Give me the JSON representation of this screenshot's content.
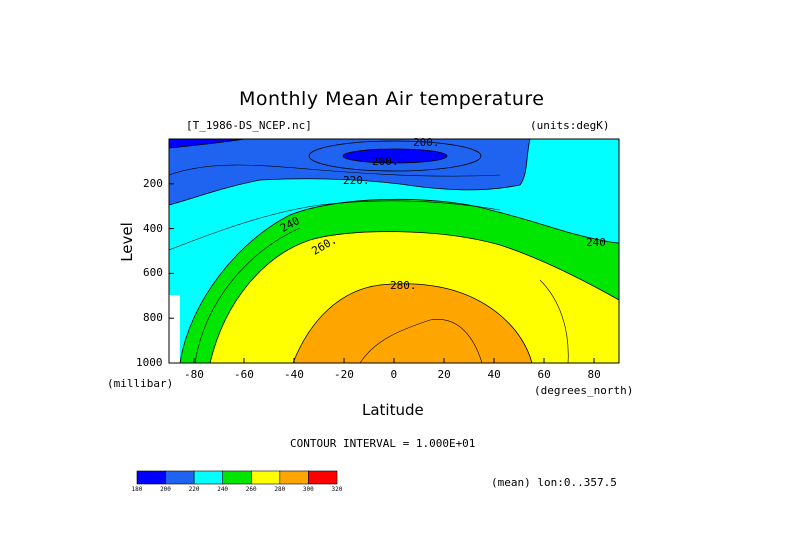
{
  "chart_data": {
    "type": "contour",
    "title": "Monthly Mean Air temperature",
    "source_label": "[T_1986-DS_NCEP.nc]",
    "units_label": "(units:degK)",
    "xlabel": "Latitude",
    "x_units": "(degrees_north)",
    "ylabel": "Level",
    "y_units": "(millibar)",
    "xlim": [
      -90,
      90
    ],
    "ylim": [
      1000,
      0
    ],
    "x_ticks": [
      "-80",
      "-60",
      "-40",
      "-20",
      "0",
      "20",
      "40",
      "60",
      "80"
    ],
    "y_ticks": [
      "200",
      "400",
      "600",
      "800",
      "1000"
    ],
    "contour_interval_text": "CONTOUR INTERVAL = 1.000E+01",
    "annotation": "(mean) lon:0..357.5",
    "contour_labels": [
      "200.",
      "200.",
      "220.",
      "240",
      "260.",
      "280.",
      "240"
    ],
    "colorbar": {
      "levels": [
        "180",
        "200",
        "220",
        "240",
        "260",
        "280",
        "300",
        "320"
      ],
      "colors": [
        "#0000ff",
        "#1e64f0",
        "#00ffff",
        "#00e600",
        "#ffff00",
        "#ffa500",
        "#ff0000"
      ]
    }
  }
}
